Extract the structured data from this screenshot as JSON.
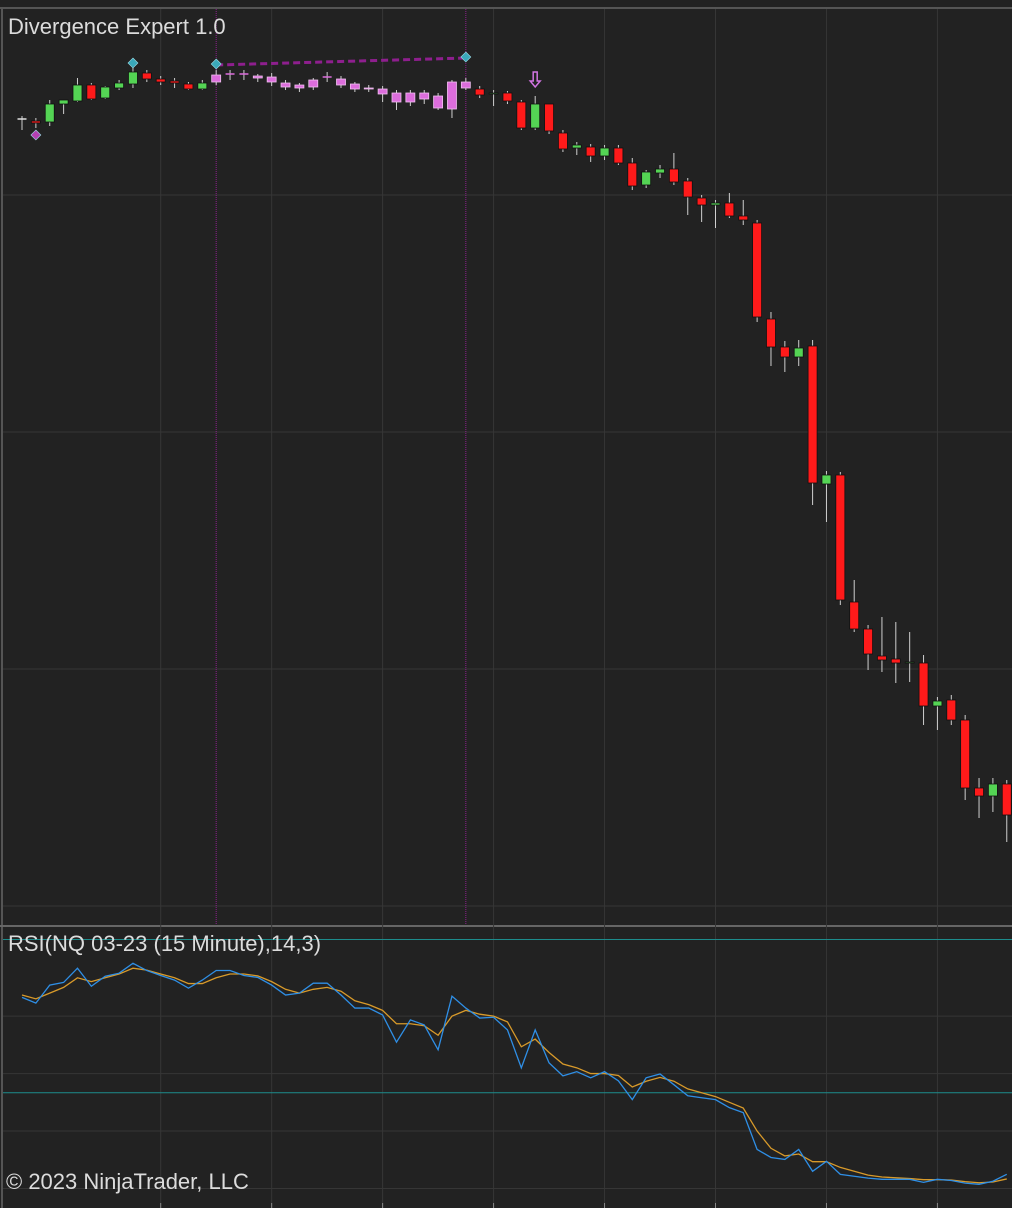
{
  "chart_data": [
    {
      "type": "candlestick",
      "title": "Divergence Expert 1.0",
      "ylim": [
        75,
        990
      ],
      "yticks": [
        94,
        331,
        568,
        805
      ],
      "xgrid": [
        10,
        18,
        26,
        34,
        42,
        50,
        58,
        66
      ],
      "up_color": "#54d454",
      "down_color": "#ff1a1a",
      "doji_color": "#e0e0e0",
      "wick_color": "#cfcfcf",
      "highlight": [
        14,
        32
      ],
      "highlight_color": "#dc6ddc",
      "ohlc": [
        [
          881,
          884,
          870,
          881
        ],
        [
          879,
          882,
          872,
          877
        ],
        [
          878,
          900,
          874,
          896
        ],
        [
          896,
          900,
          886,
          900
        ],
        [
          899,
          922,
          898,
          915
        ],
        [
          915,
          917,
          900,
          901
        ],
        [
          902,
          914,
          901,
          913
        ],
        [
          912,
          920,
          910,
          917
        ],
        [
          916,
          932,
          912,
          928
        ],
        [
          927,
          930,
          918,
          921
        ],
        [
          921,
          924,
          915,
          918
        ],
        [
          919,
          922,
          912,
          917
        ],
        [
          916,
          918,
          910,
          911
        ],
        [
          911,
          920,
          910,
          917
        ],
        [
          918,
          930,
          915,
          925
        ],
        [
          926,
          930,
          920,
          926
        ],
        [
          926,
          930,
          920,
          926
        ],
        [
          924,
          926,
          918,
          922
        ],
        [
          923,
          927,
          914,
          918
        ],
        [
          917,
          920,
          910,
          913
        ],
        [
          915,
          917,
          908,
          912
        ],
        [
          913,
          922,
          910,
          920
        ],
        [
          923,
          928,
          918,
          923
        ],
        [
          921,
          924,
          912,
          915
        ],
        [
          916,
          918,
          908,
          911
        ],
        [
          912,
          915,
          908,
          911
        ],
        [
          911,
          914,
          898,
          906
        ],
        [
          907,
          910,
          890,
          898
        ],
        [
          898,
          910,
          894,
          907
        ],
        [
          907,
          910,
          896,
          901
        ],
        [
          892,
          907,
          890,
          904
        ],
        [
          891,
          920,
          882,
          918
        ],
        [
          918,
          922,
          910,
          912
        ],
        [
          911,
          914,
          902,
          905
        ],
        [
          906,
          910,
          894,
          907
        ],
        [
          907,
          909,
          896,
          899
        ],
        [
          898,
          900,
          870,
          872
        ],
        [
          872,
          904,
          870,
          896
        ],
        [
          896,
          896,
          866,
          869
        ],
        [
          867,
          870,
          848,
          851
        ],
        [
          852,
          858,
          845,
          855
        ],
        [
          853,
          856,
          838,
          844
        ],
        [
          844,
          855,
          840,
          852
        ],
        [
          852,
          855,
          835,
          837
        ],
        [
          837,
          842,
          810,
          814
        ],
        [
          815,
          830,
          812,
          828
        ],
        [
          827,
          835,
          822,
          831
        ],
        [
          831,
          847,
          815,
          818
        ],
        [
          819,
          822,
          785,
          803
        ],
        [
          802,
          805,
          778,
          795
        ],
        [
          795,
          800,
          772,
          797
        ],
        [
          797,
          807,
          782,
          784
        ],
        [
          784,
          800,
          775,
          780
        ],
        [
          777,
          780,
          678,
          683
        ],
        [
          681,
          688,
          634,
          653
        ],
        [
          653,
          659,
          628,
          643
        ],
        [
          643,
          660,
          634,
          652
        ],
        [
          654,
          660,
          495,
          517
        ],
        [
          516,
          529,
          478,
          525
        ],
        [
          525,
          528,
          395,
          400
        ],
        [
          398,
          420,
          368,
          371
        ],
        [
          371,
          375,
          330,
          346
        ],
        [
          344,
          383,
          328,
          340
        ],
        [
          341,
          378,
          317,
          337
        ],
        [
          337,
          368,
          318,
          338
        ],
        [
          337,
          345,
          275,
          294
        ],
        [
          294,
          303,
          270,
          299
        ],
        [
          300,
          305,
          275,
          280
        ],
        [
          280,
          285,
          200,
          212
        ],
        [
          212,
          222,
          182,
          204
        ],
        [
          204,
          222,
          188,
          216
        ],
        [
          216,
          220,
          158,
          185
        ]
      ],
      "markers": [
        {
          "index": 1,
          "value": 865,
          "color": "#b340b3"
        },
        {
          "index": 8,
          "value": 937,
          "color": "#3aa8ba"
        },
        {
          "index": 14,
          "value": 936,
          "color": "#3aa8ba"
        },
        {
          "index": 32,
          "value": 943,
          "color": "#3aa8ba"
        }
      ],
      "divergence": {
        "from": [
          14,
          935
        ],
        "to": [
          32,
          942
        ],
        "color": "#8e1f8e"
      },
      "signal": {
        "index": 37,
        "value": 928,
        "color": "#d274e2"
      }
    },
    {
      "type": "line",
      "title": "RSI(NQ 03-23 (15 Minute),14,3)",
      "ylim": [
        2,
        73
      ],
      "yticks": [
        5,
        20,
        35,
        50
      ],
      "levels": [
        70,
        30
      ],
      "level_color": "#1d8c8c",
      "series": [
        {
          "color": "#2f8fe6",
          "values": [
            54.9,
            53.4,
            58.1,
            58.8,
            62.5,
            57.8,
            60.4,
            61.2,
            63.8,
            61.9,
            60.6,
            59.4,
            57.3,
            59.4,
            61.9,
            61.9,
            60.6,
            60.1,
            58.1,
            55.5,
            56.0,
            58.6,
            58.6,
            55.5,
            52.1,
            52.1,
            50.3,
            43.2,
            49.0,
            47.7,
            41.2,
            55.2,
            52.1,
            49.5,
            49.7,
            46.4,
            36.5,
            46.4,
            37.8,
            34.4,
            35.5,
            33.9,
            35.5,
            33.1,
            28.2,
            33.9,
            34.9,
            32.1,
            29.2,
            28.7,
            28.2,
            26.1,
            24.8,
            15.2,
            13.1,
            12.6,
            15.2,
            9.5,
            12.1,
            8.7,
            8.2,
            7.7,
            7.4,
            7.4,
            7.4,
            6.6,
            7.4,
            7.1,
            6.4,
            6.1,
            6.9,
            8.7
          ]
        },
        {
          "color": "#d89a2a",
          "values": [
            55.5,
            54.5,
            56,
            57.5,
            60,
            59,
            60,
            61,
            62.5,
            62,
            61,
            60,
            58.5,
            58.5,
            60,
            61,
            61,
            60.5,
            59,
            57,
            56,
            57,
            57.5,
            56.5,
            54,
            53,
            51.5,
            48,
            48,
            47.5,
            45,
            50,
            51.5,
            50.5,
            50,
            48.5,
            42,
            44,
            40.5,
            37.5,
            36.5,
            35,
            35,
            34.5,
            31.5,
            33,
            34,
            33,
            31,
            30,
            29,
            27.5,
            26,
            20,
            15.5,
            13.5,
            14,
            12,
            12,
            10.5,
            9.5,
            8.5,
            8,
            7.8,
            7.6,
            7.3,
            7.3,
            7.2,
            6.8,
            6.5,
            6.7,
            7.5
          ]
        }
      ]
    }
  ],
  "copyright": "© 2023 NinjaTrader, LLC"
}
